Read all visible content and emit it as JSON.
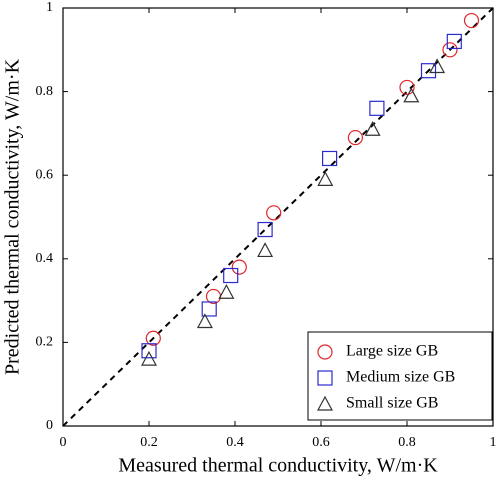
{
  "chart_data": {
    "type": "scatter",
    "xlabel": "Measured thermal conductivity, W/m·K",
    "ylabel": "Predicted thermal conductivity, W/m·K",
    "xlim": [
      0,
      1
    ],
    "ylim": [
      0,
      1
    ],
    "xticks": [
      0,
      0.2,
      0.4,
      0.6,
      0.8,
      1
    ],
    "yticks": [
      0,
      0.2,
      0.4,
      0.6,
      0.8,
      1
    ],
    "legend": "lower right",
    "series": [
      {
        "name": "Large size GB",
        "color": "#e0262b",
        "marker": "circle",
        "x": [
          0.21,
          0.35,
          0.41,
          0.49,
          0.68,
          0.8,
          0.9,
          0.95
        ],
        "values": [
          0.21,
          0.31,
          0.38,
          0.51,
          0.69,
          0.81,
          0.9,
          0.97
        ]
      },
      {
        "name": "Medium size GB",
        "color": "#2b2bd0",
        "marker": "square",
        "x": [
          0.2,
          0.34,
          0.39,
          0.47,
          0.62,
          0.73,
          0.85,
          0.91
        ],
        "values": [
          0.18,
          0.28,
          0.36,
          0.47,
          0.64,
          0.76,
          0.85,
          0.92
        ]
      },
      {
        "name": "Small size GB",
        "color": "#333333",
        "marker": "triangle",
        "x": [
          0.2,
          0.33,
          0.38,
          0.47,
          0.61,
          0.72,
          0.81,
          0.87
        ],
        "values": [
          0.16,
          0.25,
          0.32,
          0.42,
          0.59,
          0.71,
          0.79,
          0.86
        ]
      }
    ]
  }
}
